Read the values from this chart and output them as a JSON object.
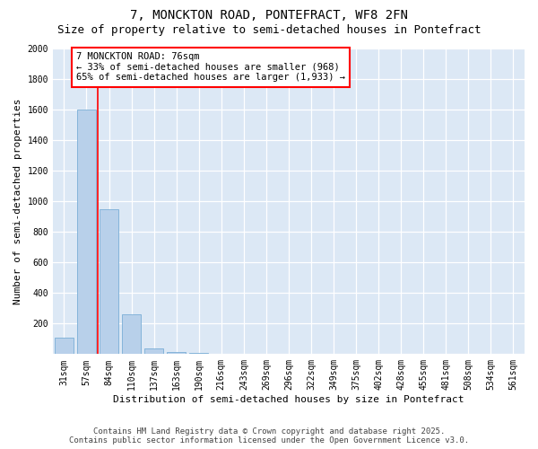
{
  "title": "7, MONCKTON ROAD, PONTEFRACT, WF8 2FN",
  "subtitle": "Size of property relative to semi-detached houses in Pontefract",
  "xlabel": "Distribution of semi-detached houses by size in Pontefract",
  "ylabel": "Number of semi-detached properties",
  "categories": [
    "31sqm",
    "57sqm",
    "84sqm",
    "110sqm",
    "137sqm",
    "163sqm",
    "190sqm",
    "216sqm",
    "243sqm",
    "269sqm",
    "296sqm",
    "322sqm",
    "349sqm",
    "375sqm",
    "402sqm",
    "428sqm",
    "455sqm",
    "481sqm",
    "508sqm",
    "534sqm",
    "561sqm"
  ],
  "values": [
    105,
    1600,
    950,
    260,
    35,
    15,
    8,
    0,
    0,
    0,
    0,
    0,
    0,
    0,
    0,
    0,
    0,
    0,
    0,
    0,
    0
  ],
  "bar_color": "#b8d0ea",
  "bar_edge_color": "#7aaed6",
  "red_line_x": 1.5,
  "ylim": [
    0,
    2000
  ],
  "yticks": [
    0,
    200,
    400,
    600,
    800,
    1000,
    1200,
    1400,
    1600,
    1800,
    2000
  ],
  "annotation_text": "7 MONCKTON ROAD: 76sqm\n← 33% of semi-detached houses are smaller (968)\n65% of semi-detached houses are larger (1,933) →",
  "footer_line1": "Contains HM Land Registry data © Crown copyright and database right 2025.",
  "footer_line2": "Contains public sector information licensed under the Open Government Licence v3.0.",
  "background_color": "#dce8f5",
  "grid_color": "#ffffff",
  "fig_bg_color": "#ffffff",
  "title_fontsize": 10,
  "subtitle_fontsize": 9,
  "axis_label_fontsize": 8,
  "tick_fontsize": 7,
  "footer_fontsize": 6.5,
  "annotation_fontsize": 7.5
}
